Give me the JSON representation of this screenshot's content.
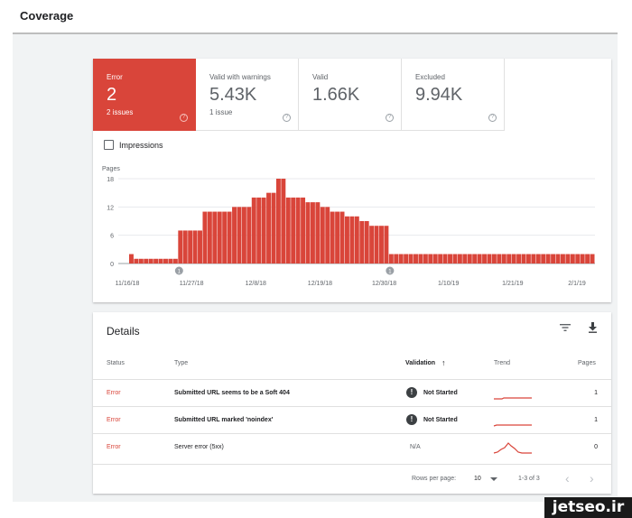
{
  "page": {
    "title": "Coverage"
  },
  "tiles": [
    {
      "label": "Error",
      "value": "2",
      "sub": "2 issues",
      "help": "?"
    },
    {
      "label": "Valid with warnings",
      "value": "5.43K",
      "sub": "1 issue",
      "help": "?"
    },
    {
      "label": "Valid",
      "value": "1.66K",
      "sub": "",
      "help": "?"
    },
    {
      "label": "Excluded",
      "value": "9.94K",
      "sub": "",
      "help": "?"
    }
  ],
  "impressions": {
    "label": "Impressions",
    "checked": false
  },
  "chart_data": {
    "type": "bar",
    "ylabel": "Pages",
    "ylim": [
      0,
      18
    ],
    "yticks": [
      "18",
      "12",
      "6",
      "0"
    ],
    "xticks": [
      "11/16/18",
      "11/27/18",
      "12/8/18",
      "12/19/18",
      "12/30/18",
      "1/10/19",
      "1/21/19",
      "2/1/19"
    ],
    "annotations": [
      "1",
      "1"
    ],
    "grid": true,
    "color": "#d9453a",
    "values": [
      2,
      1,
      1,
      1,
      1,
      1,
      1,
      1,
      1,
      1,
      7,
      7,
      7,
      7,
      7,
      11,
      11,
      11,
      11,
      11,
      11,
      12,
      12,
      12,
      12,
      14,
      14,
      14,
      15,
      15,
      18,
      18,
      14,
      14,
      14,
      14,
      13,
      13,
      13,
      12,
      12,
      11,
      11,
      11,
      10,
      10,
      10,
      9,
      9,
      8,
      8,
      8,
      8,
      2,
      2,
      2,
      2,
      2,
      2,
      2,
      2,
      2,
      2,
      2,
      2,
      2,
      2,
      2,
      2,
      2,
      2,
      2,
      2,
      2,
      2,
      2,
      2,
      2,
      2,
      2,
      2,
      2,
      2,
      2,
      2,
      2,
      2,
      2,
      2,
      2,
      2,
      2,
      2,
      2,
      2
    ]
  },
  "details": {
    "title": "Details",
    "filter_icon": "filter-icon",
    "download_icon": "download-icon",
    "columns": {
      "status": "Status",
      "type": "Type",
      "validation": "Validation",
      "sort_arrow": "↑",
      "trend": "Trend",
      "pages": "Pages"
    },
    "rows": [
      {
        "status": "Error",
        "type": "Submitted URL seems to be a Soft 404",
        "validation": "Not Started",
        "pages": "1"
      },
      {
        "status": "Error",
        "type": "Submitted URL marked 'noindex'",
        "validation": "Not Started",
        "pages": "1"
      },
      {
        "status": "Error",
        "type": "Server error (5xx)",
        "validation": "N/A",
        "pages": "0"
      }
    ],
    "footer": {
      "rows_per_page_label": "Rows per page:",
      "rows_per_page": "10",
      "range": "1-3 of 3",
      "prev": "‹",
      "next": "›"
    }
  },
  "watermark": "jetseo.ir"
}
